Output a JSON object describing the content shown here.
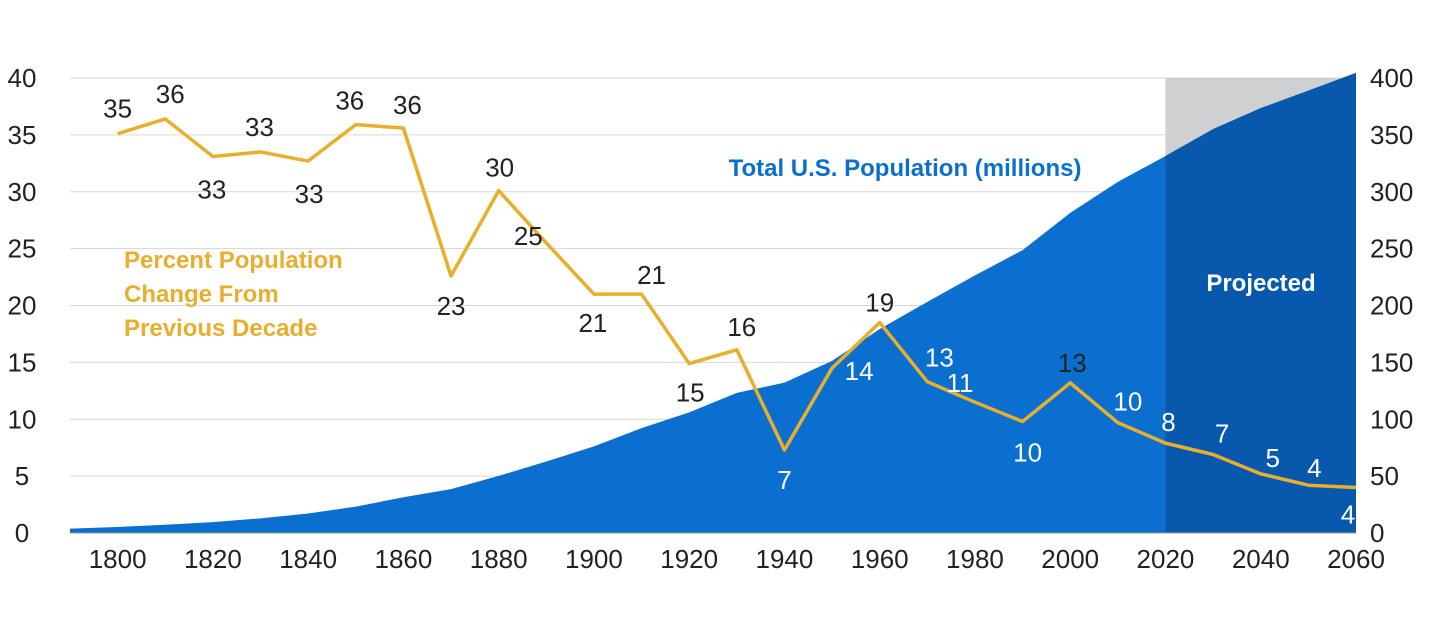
{
  "chart_data": {
    "type": "area",
    "x_ticks": [
      "1800",
      "1820",
      "1840",
      "1860",
      "1880",
      "1900",
      "1920",
      "1940",
      "1960",
      "1980",
      "2000",
      "2020",
      "2040",
      "2060"
    ],
    "xlim": [
      1790,
      2060
    ],
    "left_axis": {
      "ticks": [
        "0",
        "5",
        "10",
        "15",
        "20",
        "25",
        "30",
        "35",
        "40"
      ],
      "ylim": [
        0,
        40
      ]
    },
    "right_axis": {
      "ticks": [
        "0",
        "50",
        "100",
        "150",
        "200",
        "250",
        "300",
        "350",
        "400"
      ],
      "ylim": [
        0,
        400
      ]
    },
    "population": {
      "name": "Total U.S. Population  (millions)",
      "color": "#0A6FCF",
      "x": [
        1790,
        1800,
        1810,
        1820,
        1830,
        1840,
        1850,
        1860,
        1870,
        1880,
        1890,
        1900,
        1910,
        1920,
        1930,
        1940,
        1950,
        1960,
        1970,
        1980,
        1990,
        2000,
        2010,
        2020,
        2030,
        2040,
        2050,
        2060
      ],
      "values": [
        3.9,
        5.3,
        7.2,
        9.6,
        12.9,
        17.1,
        23.2,
        31.4,
        38.6,
        50.2,
        62.9,
        76.2,
        92.2,
        106.0,
        123.2,
        132.2,
        151.3,
        179.3,
        203.2,
        226.5,
        248.7,
        281.4,
        308.7,
        331.4,
        355.1,
        373.5,
        388.9,
        404.5
      ]
    },
    "percent_change": {
      "name": "Percent Population Change From Previous Decade",
      "label_lines": [
        "Percent Population",
        "Change From",
        "Previous Decade"
      ],
      "color": "#E8AE2C",
      "x": [
        1800,
        1810,
        1820,
        1830,
        1840,
        1850,
        1860,
        1870,
        1880,
        1890,
        1900,
        1910,
        1920,
        1930,
        1940,
        1950,
        1960,
        1970,
        1980,
        1990,
        2000,
        2010,
        2020,
        2030,
        2040,
        2050,
        2060
      ],
      "values": [
        35.1,
        36.4,
        33.1,
        33.5,
        32.7,
        35.9,
        35.6,
        22.6,
        30.1,
        25.5,
        21.0,
        21.0,
        14.9,
        16.1,
        7.3,
        14.5,
        18.5,
        13.3,
        11.5,
        9.8,
        13.2,
        9.7,
        7.9,
        6.9,
        5.2,
        4.2,
        4.0
      ],
      "labels": [
        "35",
        "36",
        "33",
        "33",
        "33",
        "36",
        "36",
        "23",
        "30",
        "25",
        "21",
        "21",
        "15",
        "16",
        "7",
        "14",
        "19",
        "13",
        "11",
        "10",
        "13",
        "10",
        "8",
        "7",
        "5",
        "4",
        "4"
      ]
    },
    "projected": {
      "label": "Projected",
      "from": 2020,
      "to": 2060
    }
  }
}
